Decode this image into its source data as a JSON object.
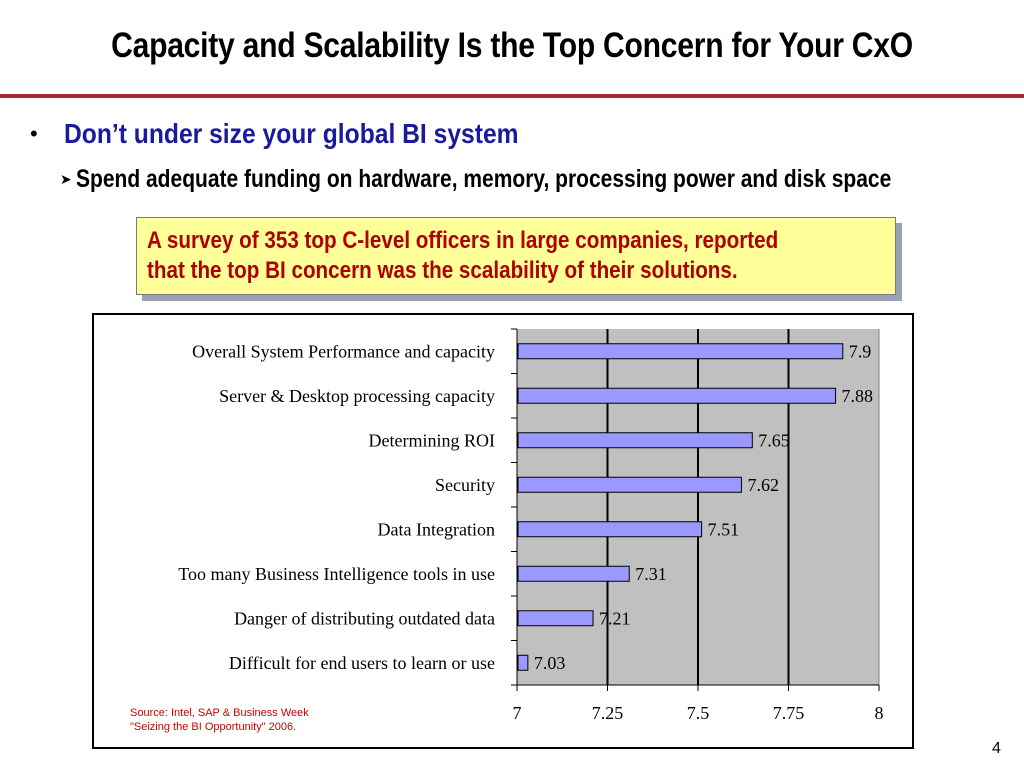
{
  "slide": {
    "title": "Capacity and Scalability Is the Top Concern for Your CxO",
    "bullet_symbol": "•",
    "bullet": "Don’t under size your global BI system",
    "sub_bullet_symbol": "➤",
    "sub_bullet": "Spend adequate funding on hardware, memory, processing power and disk space",
    "callout_line1": "A survey of 353 top C-level officers in large companies, reported",
    "callout_line2": "that the top BI concern was the scalability of their solutions.",
    "source_line1": "Source: Intel, SAP & Business Week",
    "source_line2": "\"Seizing the BI Opportunity\" 2006.",
    "page_number": "4"
  },
  "colors": {
    "title_rule": "#a52a2a",
    "bullet_text": "#1a1a9c",
    "callout_text": "#b00000",
    "callout_bg": "#ffff99",
    "bar_fill": "#9999ff",
    "plot_bg": "#c0c0c0",
    "source_text": "#cc0000"
  },
  "chart_data": {
    "type": "bar",
    "orientation": "horizontal",
    "categories": [
      "Overall System Performance and capacity",
      "Server & Desktop processing capacity",
      "Determining ROI",
      "Security",
      "Data Integration",
      "Too many Business Intelligence tools in use",
      "Danger of distributing outdated data",
      "Difficult for end users to learn or use"
    ],
    "values": [
      7.9,
      7.88,
      7.65,
      7.62,
      7.51,
      7.31,
      7.21,
      7.03
    ],
    "value_labels": [
      "7.9",
      "7.88",
      "7.65",
      "7.62",
      "7.51",
      "7.31",
      "7.21",
      "7.03"
    ],
    "xlim": [
      7,
      8
    ],
    "x_ticks": [
      "7",
      "7.25",
      "7.5",
      "7.75",
      "8"
    ],
    "x_tick_values": [
      7,
      7.25,
      7.5,
      7.75,
      8
    ],
    "grid": true,
    "legend": "none",
    "title": "",
    "xlabel": "",
    "ylabel": ""
  }
}
